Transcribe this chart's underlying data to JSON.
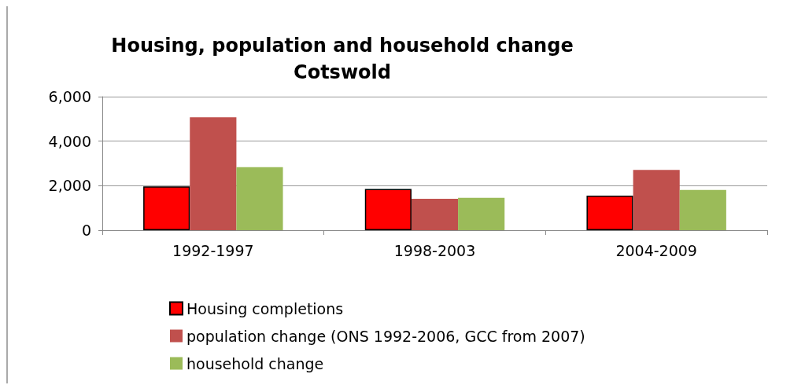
{
  "chart_data": {
    "type": "bar",
    "title": "Housing, population and household change\nCotswold",
    "categories": [
      "1992-1997",
      "1998-2003",
      "2004-2009"
    ],
    "series": [
      {
        "name": "Housing completions",
        "color": "#ff0000",
        "values": [
          1970,
          1850,
          1550
        ]
      },
      {
        "name": "population change (ONS 1992-2006, GCC from 2007)",
        "color": "#c0504d",
        "values": [
          5070,
          1410,
          2710
        ]
      },
      {
        "name": "household change",
        "color": "#9bbb59",
        "values": [
          2830,
          1460,
          1810
        ]
      }
    ],
    "ylim": [
      0,
      6000
    ],
    "yticks": [
      {
        "value": 0,
        "label": "0"
      },
      {
        "value": 2000,
        "label": "2,000"
      },
      {
        "value": 4000,
        "label": "4,000"
      },
      {
        "value": 6000,
        "label": "6,000"
      }
    ],
    "grid": "y",
    "legend": "bottom"
  }
}
